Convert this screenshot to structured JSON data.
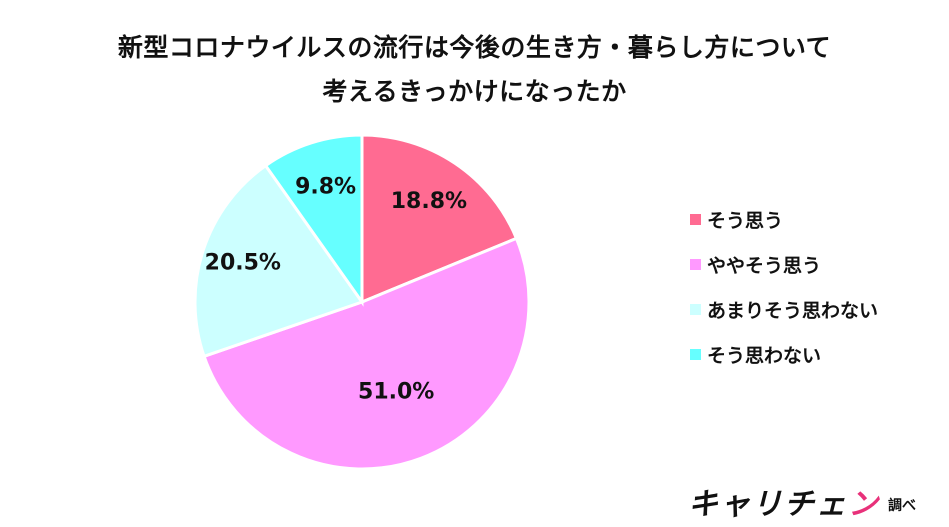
{
  "title": {
    "line1": "新型コロナウイルスの流行は今後の生き方・暮らし方について",
    "line2": "考えるきっかけになったか"
  },
  "chart_data": {
    "type": "pie",
    "start": "12 o'clock",
    "direction": "clockwise",
    "slices": [
      {
        "label": "そう思う",
        "value": 18.8,
        "display": "18.8%",
        "color": "#ff6b92"
      },
      {
        "label": "ややそう思う",
        "value": 51.0,
        "display": "51.0%",
        "color": "#ff99ff"
      },
      {
        "label": "あまりそう思わない",
        "value": 20.5,
        "display": "20.5%",
        "color": "#ccffff"
      },
      {
        "label": "そう思わない",
        "value": 9.8,
        "display": "9.8%",
        "color": "#66ffff"
      }
    ],
    "legend_position": "right"
  },
  "brand": {
    "logo_text_part1": "キャリチェ",
    "logo_text_part2": "ン",
    "suffix": "調べ"
  }
}
